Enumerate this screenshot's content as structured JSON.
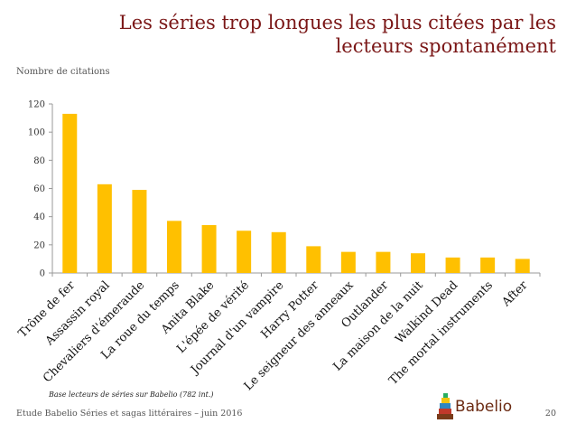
{
  "title": "Les séries trop longues les plus citées par les lecteurs spontanément",
  "y_axis_label": "Nombre de citations",
  "footnote": "Base lecteurs de séries sur Babelio  (782 int.)",
  "footer": "Etude Babelio Séries et sagas littéraires – juin 2016",
  "page_number": "20",
  "logo_text": "Babelio",
  "colors": {
    "bar": "#FFC000",
    "title": "#7a1616",
    "axis": "#999999"
  },
  "chart_data": {
    "type": "bar",
    "title": "Les séries trop longues les plus citées par les lecteurs spontanément",
    "xlabel": "",
    "ylabel": "Nombre de citations",
    "ylim": [
      0,
      120
    ],
    "yticks": [
      0,
      20,
      40,
      60,
      80,
      100,
      120
    ],
    "grid": false,
    "categories": [
      "Trône de fer",
      "Assassin royal",
      "Chevaliers d'émeraude",
      "La roue du temps",
      "Anita Blake",
      "L'épée de vérité",
      "Journal d'un vampire",
      "Harry Potter",
      "Le seigneur des anneaux",
      "Outlander",
      "La maison de la nuit",
      "Walkind Dead",
      "The mortal instruments",
      "After"
    ],
    "values": [
      113,
      63,
      59,
      37,
      34,
      30,
      29,
      19,
      15,
      15,
      14,
      11,
      11,
      10
    ]
  }
}
